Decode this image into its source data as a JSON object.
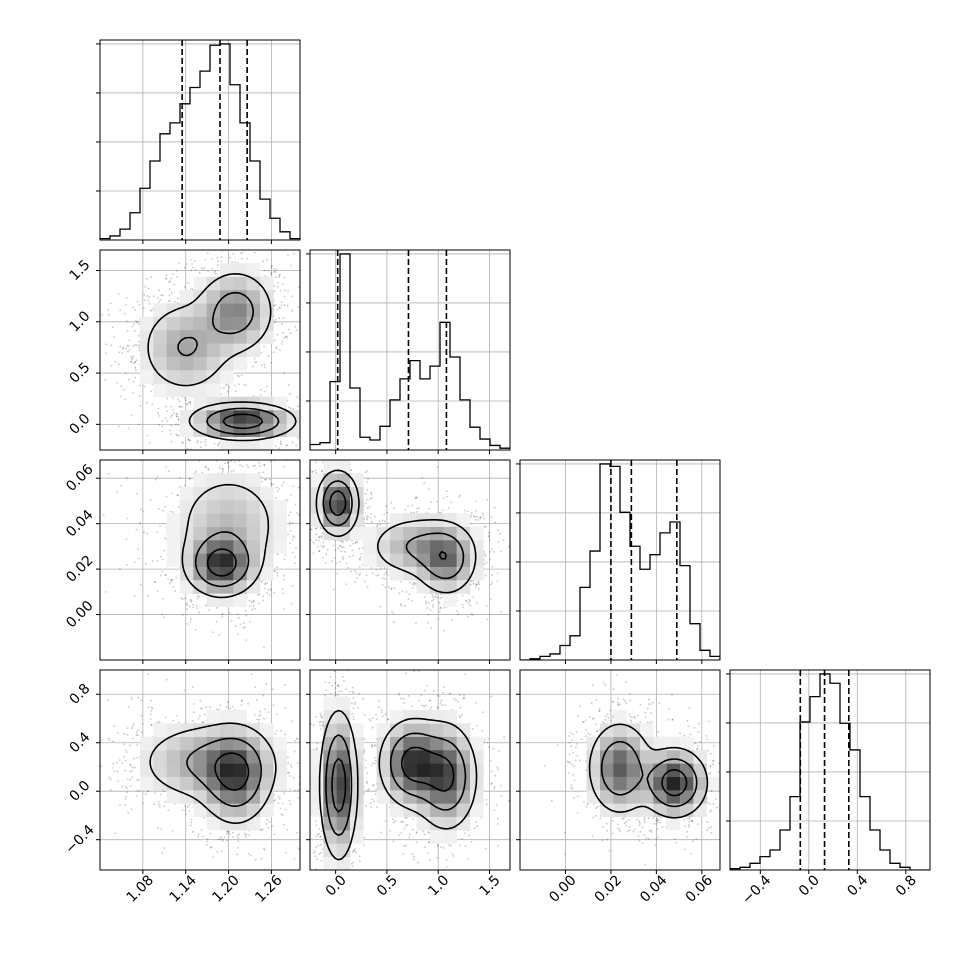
{
  "chart_data": {
    "type": "corner",
    "n_params": 4,
    "grid": true,
    "quantile_lines": "dashed",
    "params": [
      {
        "index": 0,
        "range": [
          1.02,
          1.3
        ],
        "ticks": [
          1.08,
          1.14,
          1.2,
          1.26
        ],
        "tick_labels": [
          "1.08",
          "1.14",
          "1.20",
          "1.26"
        ],
        "quantiles": [
          1.135,
          1.188,
          1.226
        ]
      },
      {
        "index": 1,
        "range": [
          -0.25,
          1.7
        ],
        "ticks": [
          0.0,
          0.5,
          1.0,
          1.5
        ],
        "tick_labels": [
          "0.0",
          "0.5",
          "1.0",
          "1.5"
        ],
        "quantiles": [
          0.02,
          0.71,
          1.08
        ]
      },
      {
        "index": 2,
        "range": [
          -0.02,
          0.068
        ],
        "ticks": [
          0.0,
          0.02,
          0.04,
          0.06
        ],
        "tick_labels": [
          "0.00",
          "0.02",
          "0.04",
          "0.06"
        ],
        "quantiles": [
          0.02,
          0.029,
          0.049
        ]
      },
      {
        "index": 3,
        "range": [
          -0.65,
          1.0
        ],
        "ticks": [
          -0.4,
          0.0,
          0.4,
          0.8
        ],
        "tick_labels": [
          "−0.4",
          "0.0",
          "0.4",
          "0.8"
        ],
        "quantiles": [
          -0.07,
          0.13,
          0.33
        ]
      }
    ],
    "histograms": [
      {
        "param": 0,
        "edges": [
          1.02,
          1.034,
          1.048,
          1.062,
          1.076,
          1.09,
          1.104,
          1.118,
          1.132,
          1.146,
          1.16,
          1.174,
          1.188,
          1.202,
          1.216,
          1.23,
          1.244,
          1.258,
          1.272,
          1.286,
          1.3
        ],
        "counts": [
          1,
          3,
          8,
          20,
          38,
          58,
          78,
          86,
          100,
          112,
          124,
          143,
          144,
          114,
          86,
          58,
          30,
          16,
          6,
          1
        ]
      },
      {
        "param": 1,
        "edges": [
          -0.25,
          -0.1525,
          -0.055,
          0.0425,
          0.14,
          0.2375,
          0.335,
          0.4325,
          0.53,
          0.6275,
          0.725,
          0.8225,
          0.92,
          1.0175,
          1.115,
          1.2125,
          1.31,
          1.4075,
          1.505,
          1.6025,
          1.7
        ],
        "counts": [
          6,
          8,
          75,
          215,
          68,
          14,
          11,
          26,
          55,
          78,
          98,
          78,
          92,
          140,
          102,
          55,
          25,
          12,
          5,
          2
        ]
      },
      {
        "param": 2,
        "edges": [
          -0.02,
          -0.0156,
          -0.0112,
          -0.0068,
          -0.0024,
          0.002,
          0.0064,
          0.0108,
          0.0152,
          0.0196,
          0.024,
          0.0284,
          0.0328,
          0.0372,
          0.0416,
          0.046,
          0.0504,
          0.0548,
          0.0592,
          0.0636,
          0.068
        ],
        "counts": [
          0,
          1,
          3,
          5,
          12,
          20,
          60,
          90,
          162,
          160,
          122,
          94,
          75,
          87,
          105,
          114,
          78,
          30,
          8,
          3
        ]
      },
      {
        "param": 3,
        "edges": [
          -0.65,
          -0.5675,
          -0.485,
          -0.4025,
          -0.32,
          -0.2375,
          -0.155,
          -0.0725,
          0.01,
          0.0925,
          0.175,
          0.2575,
          0.34,
          0.4225,
          0.505,
          0.5875,
          0.67,
          0.7525,
          0.835,
          0.9175,
          1.0
        ],
        "counts": [
          1,
          2,
          5,
          10,
          15,
          30,
          55,
          111,
          130,
          147,
          140,
          110,
          90,
          55,
          30,
          15,
          5,
          2,
          0,
          0
        ]
      }
    ],
    "pairs": [
      {
        "x": 0,
        "y": 1,
        "modes": [
          [
            1.21,
            1.1,
            0.028,
            0.21
          ],
          [
            1.14,
            0.75,
            0.034,
            0.24
          ],
          [
            1.22,
            0.03,
            0.036,
            0.09
          ]
        ]
      },
      {
        "x": 0,
        "y": 2,
        "modes": [
          [
            1.2,
            0.04,
            0.042,
            0.013
          ],
          [
            1.19,
            0.022,
            0.025,
            0.007
          ]
        ]
      },
      {
        "x": 0,
        "y": 3,
        "modes": [
          [
            1.17,
            0.24,
            0.05,
            0.17
          ],
          [
            1.21,
            0.12,
            0.025,
            0.2
          ]
        ]
      },
      {
        "x": 1,
        "y": 2,
        "modes": [
          [
            0.02,
            0.049,
            0.1,
            0.007
          ],
          [
            0.8,
            0.03,
            0.25,
            0.007
          ],
          [
            1.08,
            0.024,
            0.15,
            0.008
          ]
        ]
      },
      {
        "x": 1,
        "y": 3,
        "modes": [
          [
            0.03,
            0.05,
            0.09,
            0.3
          ],
          [
            0.75,
            0.23,
            0.16,
            0.18
          ],
          [
            1.08,
            0.12,
            0.15,
            0.22
          ]
        ]
      },
      {
        "x": 2,
        "y": 3,
        "modes": [
          [
            0.024,
            0.19,
            0.007,
            0.19
          ],
          [
            0.048,
            0.07,
            0.007,
            0.14
          ]
        ]
      }
    ]
  }
}
